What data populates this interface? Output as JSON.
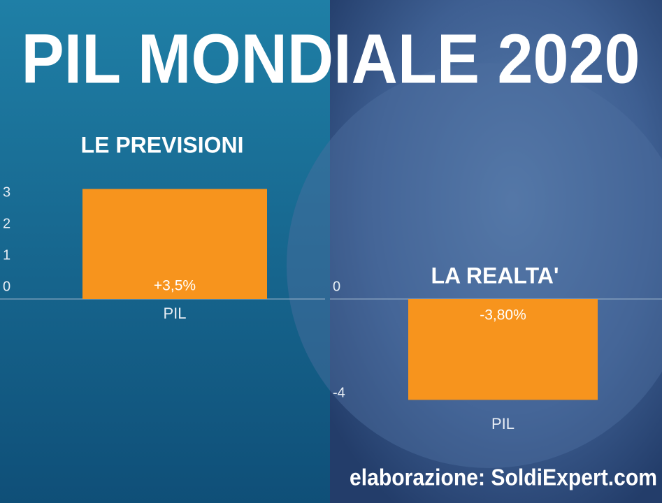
{
  "title": "PIL MONDIALE 2020",
  "credit": "elaborazione: SoldiExpert.com",
  "chart_data": [
    {
      "type": "bar",
      "title": "LE PREVISIONI",
      "categories": [
        "PIL"
      ],
      "values": [
        3.5
      ],
      "value_labels": [
        "+3,5%"
      ],
      "color": "#f7941d",
      "ylim": [
        0,
        3.5
      ],
      "yticks": [
        0,
        1,
        2,
        3
      ]
    },
    {
      "type": "bar",
      "title": "LA REALTA'",
      "categories": [
        "PIL"
      ],
      "values": [
        -3.8
      ],
      "value_labels": [
        "-3,80%"
      ],
      "color": "#f7941d",
      "ylim": [
        -4,
        0
      ],
      "yticks": [
        -4,
        0
      ]
    }
  ]
}
